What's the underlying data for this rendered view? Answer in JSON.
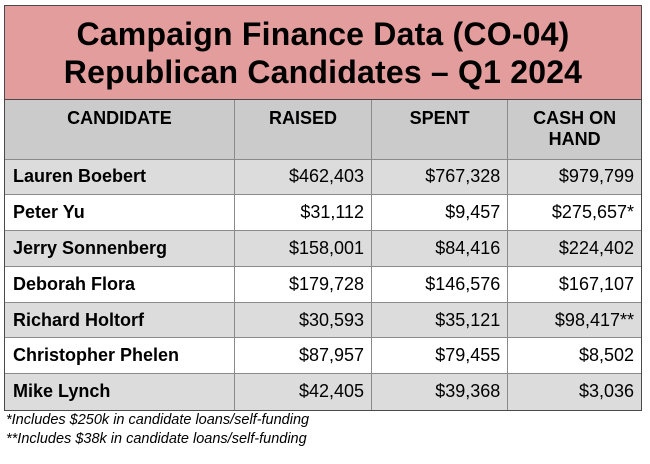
{
  "title": {
    "line1": "Campaign Finance Data (CO-04)",
    "line2": "Republican Candidates – Q1 2024"
  },
  "columns": {
    "candidate": "CANDIDATE",
    "raised": "RAISED",
    "spent": "SPENT",
    "cash_line1": "CASH ON",
    "cash_line2": "HAND"
  },
  "rows": [
    {
      "name": "Lauren Boebert",
      "raised": "$462,403",
      "spent": "$767,328",
      "cash": "$979,799"
    },
    {
      "name": "Peter Yu",
      "raised": "$31,112",
      "spent": "$9,457",
      "cash": "$275,657*"
    },
    {
      "name": "Jerry Sonnenberg",
      "raised": "$158,001",
      "spent": "$84,416",
      "cash": "$224,402"
    },
    {
      "name": "Deborah Flora",
      "raised": "$179,728",
      "spent": "$146,576",
      "cash": "$167,107"
    },
    {
      "name": "Richard Holtorf",
      "raised": "$30,593",
      "spent": "$35,121",
      "cash": "$98,417**"
    },
    {
      "name": "Christopher Phelen",
      "raised": "$87,957",
      "spent": "$79,455",
      "cash": "$8,502"
    },
    {
      "name": "Mike Lynch",
      "raised": "$42,405",
      "spent": "$39,368",
      "cash": "$3,036"
    }
  ],
  "footnotes": [
    "*Includes $250k in candidate loans/self-funding",
    "**Includes $38k in candidate loans/self-funding"
  ],
  "colors": {
    "title_bg": "#e29d9c",
    "header_bg": "#cbcbcb",
    "row_shade": "#dcdcdc",
    "border": "#4a4a4a"
  }
}
